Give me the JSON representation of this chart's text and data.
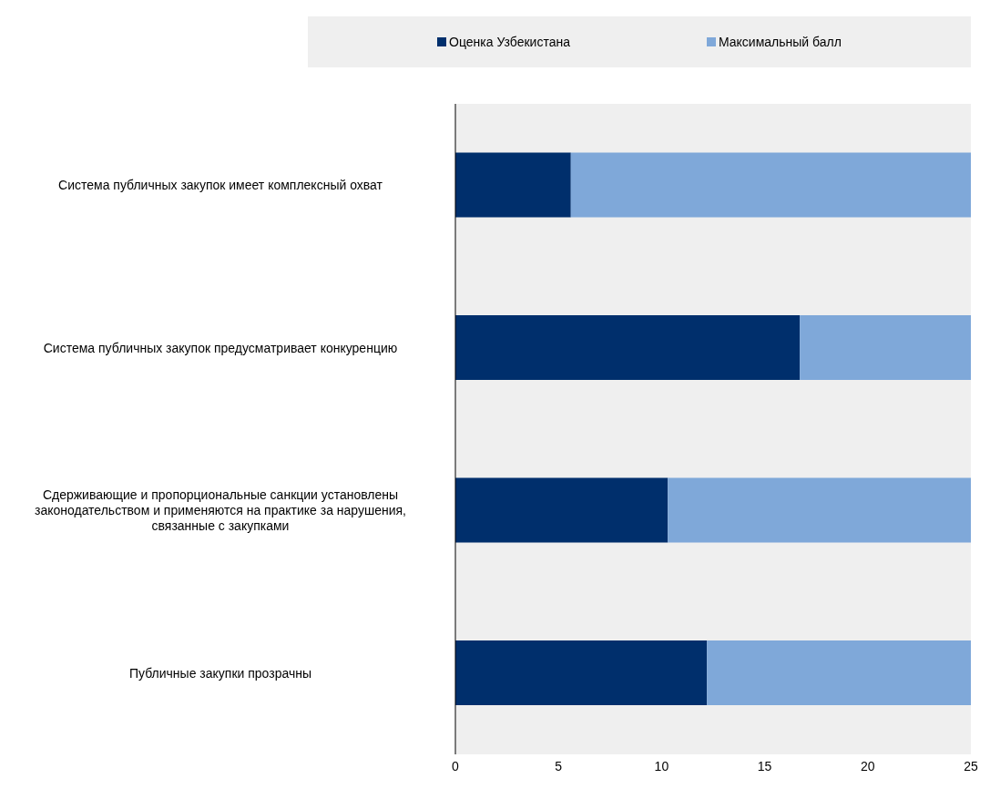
{
  "chart_data": {
    "type": "bar",
    "orientation": "horizontal",
    "stacked": true,
    "categories": [
      "Система публичных закупок имеет комплексный охват",
      "Система публичных закупок предусматривает конкуренцию",
      "Сдерживающие и пропорциональные санкции установлены законодательством и применяются на практике за нарушения, связанные с закупками",
      "Публичные закупки прозрачны"
    ],
    "series": [
      {
        "name": "Оценка Узбекистана",
        "color": "#002f6c",
        "values": [
          5.6,
          16.7,
          10.3,
          12.2
        ]
      },
      {
        "name": "Максимальный балл",
        "color": "#7fa8d9",
        "values": [
          19.4,
          8.3,
          14.7,
          12.8
        ]
      }
    ],
    "xlim": [
      0,
      25
    ],
    "xticks": [
      0,
      5,
      10,
      15,
      20,
      25
    ],
    "legend": "top",
    "grid": false
  }
}
